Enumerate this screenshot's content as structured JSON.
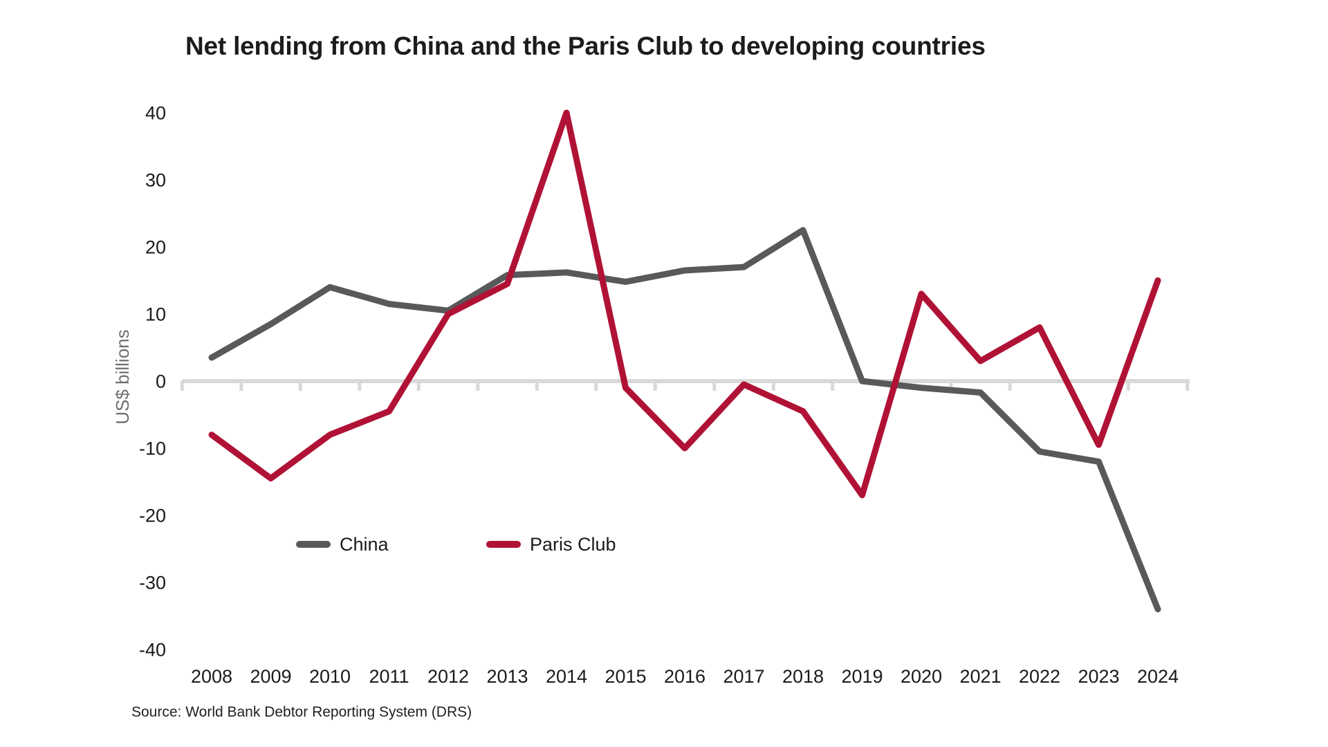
{
  "title": "Net lending from China and the Paris Club to developing countries",
  "y_axis_label": "US$ billions",
  "source": "Source: World Bank Debtor Reporting System (DRS)",
  "colors": {
    "china_line": "#58595B",
    "paris_club_line": "#B01235",
    "axis_line": "#D9D9D9",
    "tick_text": "#1A1A1A",
    "muted_text": "#6D6E71",
    "background": "#FFFFFF"
  },
  "legend": {
    "china_label": "China",
    "paris_club_label": "Paris Club"
  },
  "chart_data": {
    "type": "line",
    "title": "Net lending from China and the Paris Club to developing countries",
    "xlabel": "",
    "ylabel": "US$ billions",
    "categories": [
      "2008",
      "2009",
      "2010",
      "2011",
      "2012",
      "2013",
      "2014",
      "2015",
      "2016",
      "2017",
      "2018",
      "2019",
      "2020",
      "2021",
      "2022",
      "2023",
      "2024"
    ],
    "series": [
      {
        "name": "China",
        "color": "#58595B",
        "values": [
          3.5,
          8.5,
          14,
          11.5,
          10.5,
          15.8,
          16.2,
          14.8,
          16.5,
          17,
          22.5,
          0,
          -1,
          -1.7,
          -10.5,
          -12,
          -34
        ]
      },
      {
        "name": "Paris Club",
        "color": "#B01235",
        "values": [
          -8,
          -14.5,
          -8,
          -4.5,
          10,
          14.5,
          40,
          -1,
          -10,
          -0.5,
          -4.5,
          -17,
          13,
          3,
          8,
          -9.5,
          15
        ]
      }
    ],
    "ylim": [
      -40,
      40
    ],
    "y_ticks": [
      40,
      30,
      20,
      10,
      0,
      -10,
      -20,
      -30,
      -40
    ],
    "grid": "zero-baseline-only",
    "legend_position": "inside-bottom-left"
  }
}
